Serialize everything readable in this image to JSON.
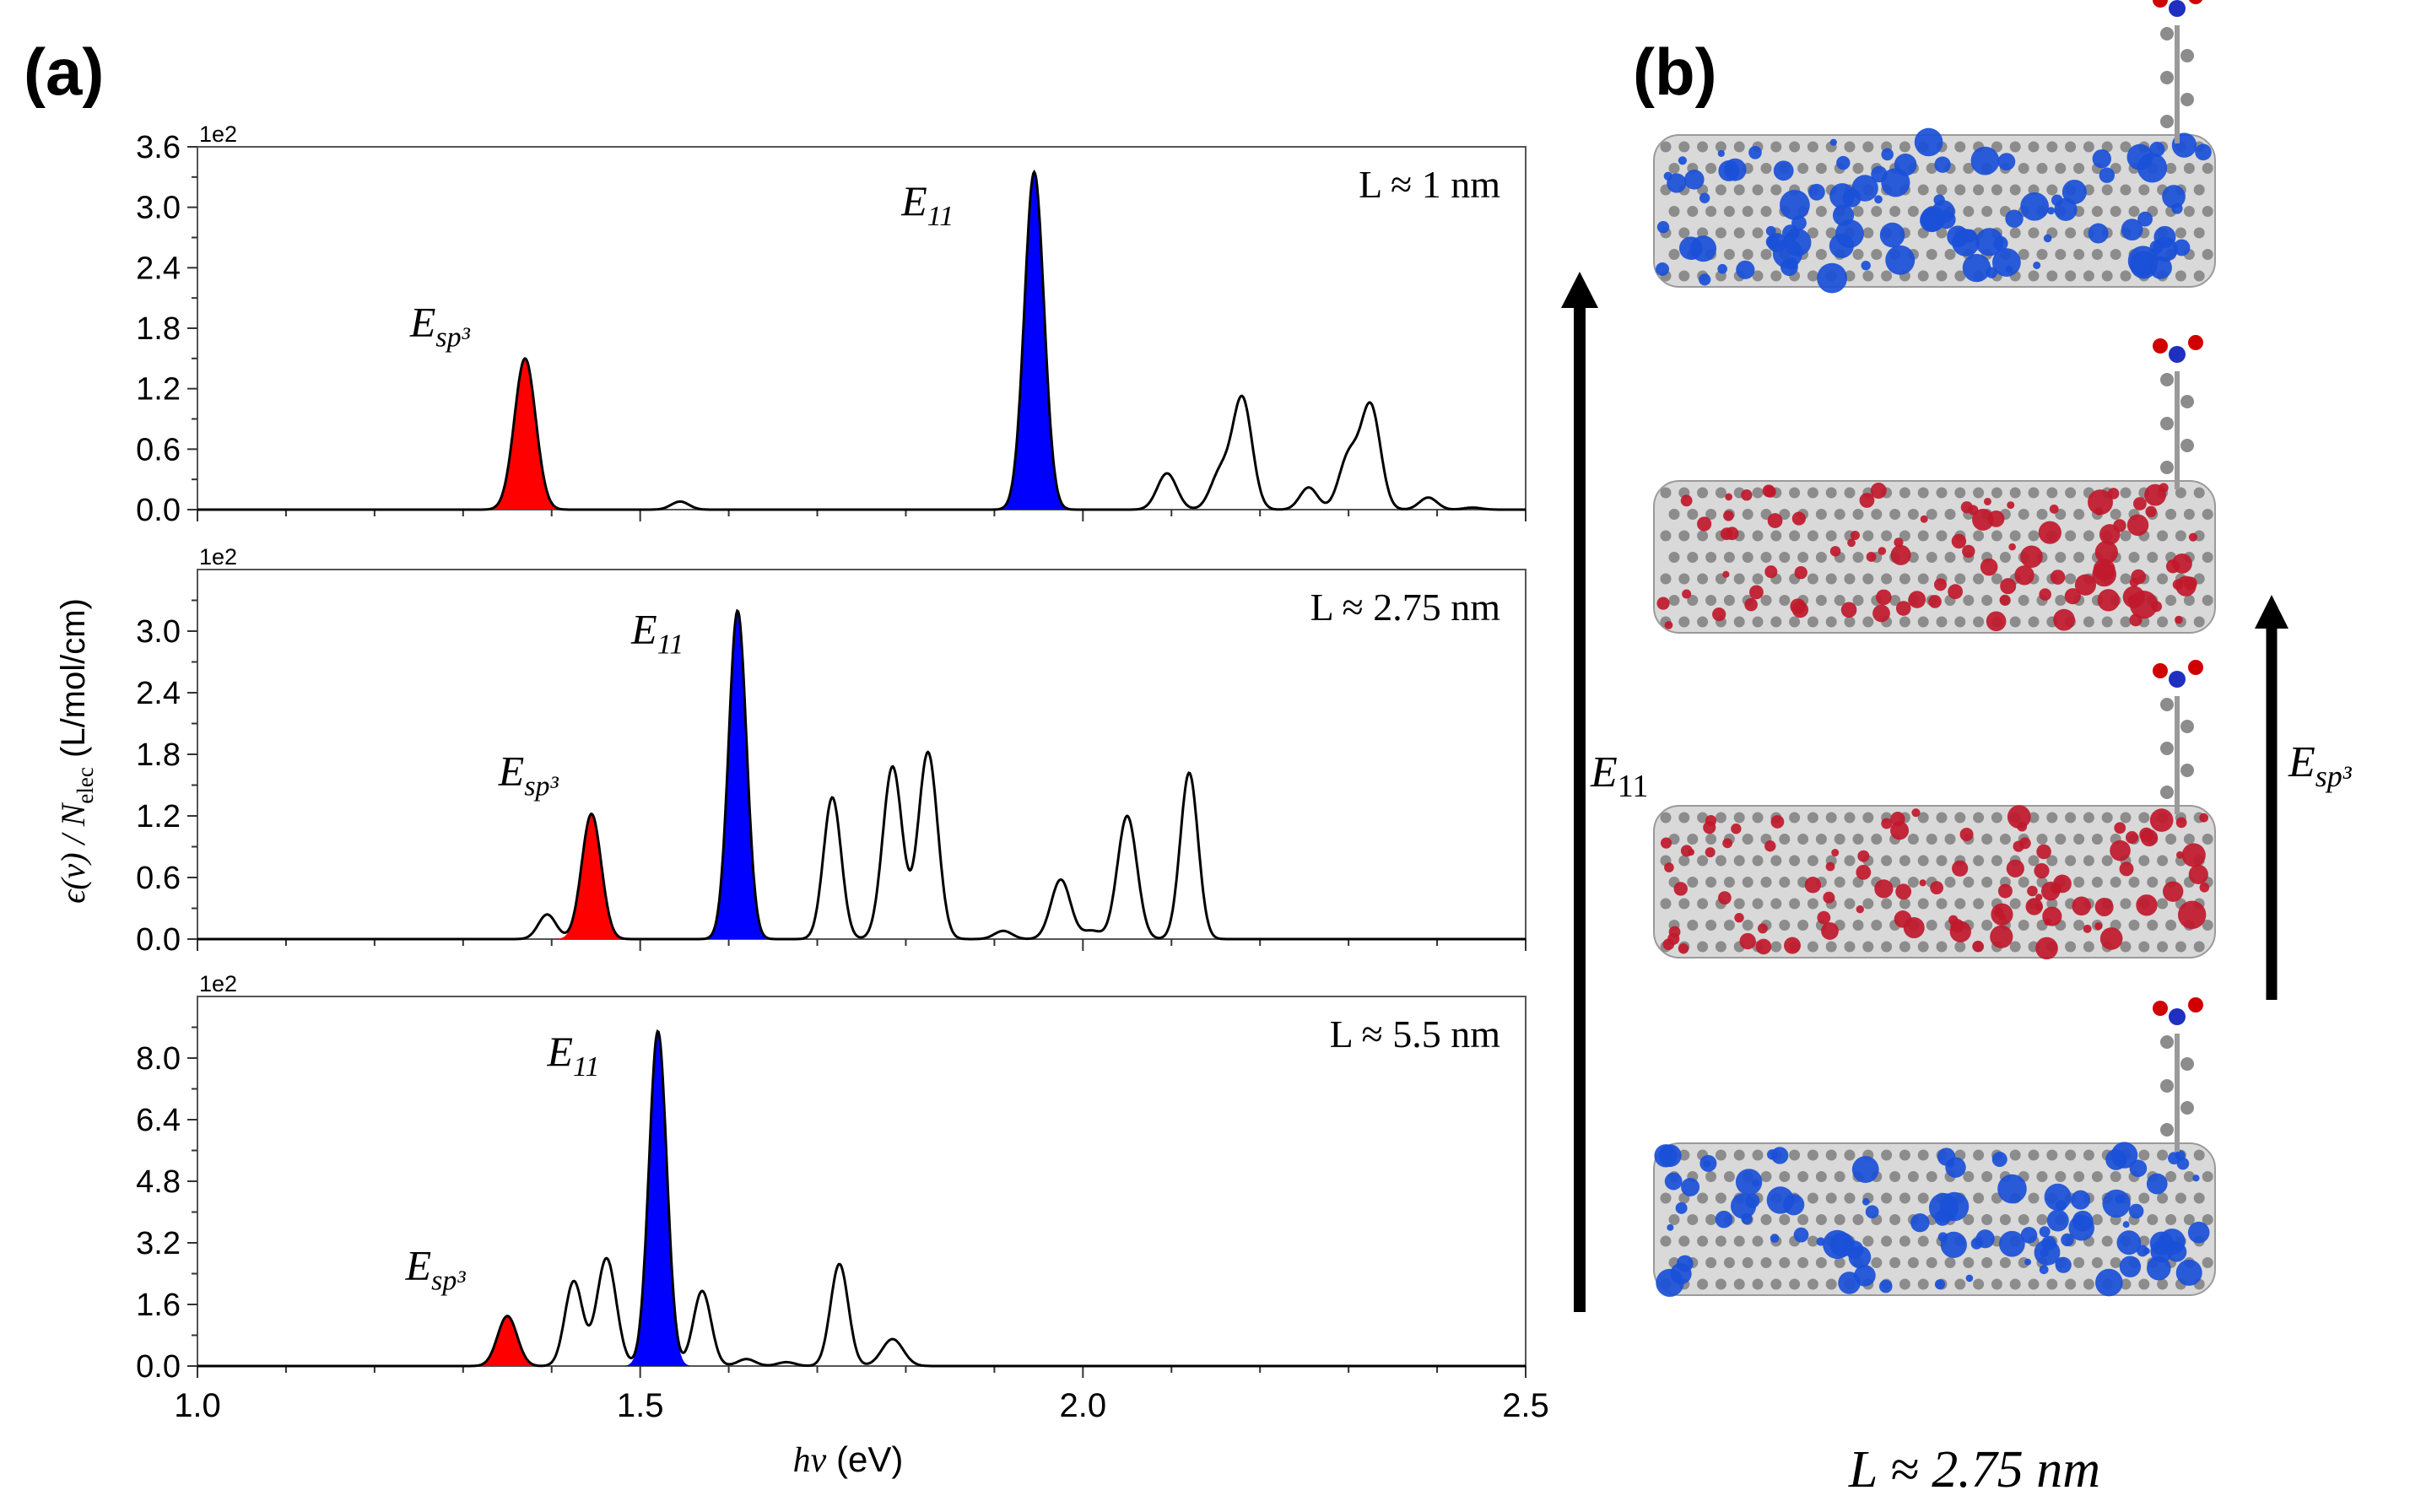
{
  "panel_a_label": "(a)",
  "panel_b_label": "(b)",
  "ylabel": {
    "eps": "ϵ(ν) / N",
    "sub": "elec",
    "unit": " (L/mol/cm)"
  },
  "xlabel": {
    "main": "hν",
    "unit": " (eV)"
  },
  "colors": {
    "esp3": "#ff0000",
    "e11": "#0000ff",
    "line": "#000000",
    "frame": "#555555"
  },
  "chart_data": [
    {
      "type": "line",
      "title": "L ≈ 1 nm",
      "exponent_label": "1e2",
      "xlim": [
        1.0,
        2.5
      ],
      "ylim": [
        0,
        3.6
      ],
      "yticks": [
        0.0,
        0.6,
        1.2,
        1.8,
        2.4,
        3.0,
        3.6
      ],
      "ytick_labels": [
        "0.0",
        "0.6",
        "1.2",
        "1.8",
        "2.4",
        "3.0",
        "3.6"
      ],
      "xticks": [
        1.0,
        1.5,
        2.0,
        2.5
      ],
      "xtick_labels": [],
      "peaks": [
        {
          "center": 1.37,
          "height": 1.5,
          "width": 0.012,
          "fill": "esp3",
          "label": "E",
          "sub": "sp³"
        },
        {
          "center": 1.545,
          "height": 0.08,
          "width": 0.01
        },
        {
          "center": 1.945,
          "height": 3.35,
          "width": 0.011,
          "fill": "e11",
          "label": "E",
          "sub": "11"
        },
        {
          "center": 2.095,
          "height": 0.36,
          "width": 0.011
        },
        {
          "center": 2.155,
          "height": 0.36,
          "width": 0.011
        },
        {
          "center": 2.18,
          "height": 1.1,
          "width": 0.011
        },
        {
          "center": 2.255,
          "height": 0.22,
          "width": 0.01
        },
        {
          "center": 2.3,
          "height": 0.52,
          "width": 0.011
        },
        {
          "center": 2.325,
          "height": 1.02,
          "width": 0.011
        },
        {
          "center": 2.39,
          "height": 0.12,
          "width": 0.01
        },
        {
          "center": 2.44,
          "height": 0.02,
          "width": 0.01
        }
      ],
      "peak_labels": [
        {
          "text": "E",
          "sub": "sp³",
          "x": 1.24,
          "y": 1.72
        },
        {
          "text": "E",
          "sub": "11",
          "x": 1.795,
          "y": 2.92
        }
      ]
    },
    {
      "type": "line",
      "title": "L ≈ 2.75 nm",
      "exponent_label": "1e2",
      "xlim": [
        1.0,
        2.5
      ],
      "ylim": [
        0,
        3.6
      ],
      "yticks": [
        0.0,
        0.6,
        1.2,
        1.8,
        2.4,
        3.0
      ],
      "ytick_labels": [
        "0.0",
        "0.6",
        "1.2",
        "1.8",
        "2.4",
        "3.0"
      ],
      "xticks": [
        1.0,
        1.5,
        2.0,
        2.5
      ],
      "xtick_labels": [],
      "peaks": [
        {
          "center": 1.395,
          "height": 0.24,
          "width": 0.01
        },
        {
          "center": 1.445,
          "height": 1.22,
          "width": 0.011,
          "fill": "esp3"
        },
        {
          "center": 1.61,
          "height": 3.2,
          "width": 0.01,
          "fill": "e11"
        },
        {
          "center": 1.717,
          "height": 1.38,
          "width": 0.01
        },
        {
          "center": 1.785,
          "height": 1.68,
          "width": 0.011
        },
        {
          "center": 1.825,
          "height": 1.82,
          "width": 0.011
        },
        {
          "center": 1.91,
          "height": 0.08,
          "width": 0.01
        },
        {
          "center": 1.975,
          "height": 0.58,
          "width": 0.011
        },
        {
          "center": 2.01,
          "height": 0.08,
          "width": 0.01
        },
        {
          "center": 2.05,
          "height": 1.2,
          "width": 0.011
        },
        {
          "center": 2.12,
          "height": 1.62,
          "width": 0.01
        }
      ],
      "peak_labels": [
        {
          "text": "E",
          "sub": "sp³",
          "x": 1.34,
          "y": 1.5
        },
        {
          "text": "E",
          "sub": "11",
          "x": 1.49,
          "y": 2.88
        }
      ]
    },
    {
      "type": "line",
      "title": "L ≈ 5.5 nm",
      "exponent_label": "1e2",
      "xlim": [
        1.0,
        2.5
      ],
      "ylim": [
        0,
        9.6
      ],
      "yticks": [
        0.0,
        1.6,
        3.2,
        4.8,
        6.4,
        8.0
      ],
      "ytick_labels": [
        "0.0",
        "1.6",
        "3.2",
        "4.8",
        "6.4",
        "8.0"
      ],
      "xticks": [
        1.0,
        1.5,
        2.0,
        2.5
      ],
      "xtick_labels": [
        "1.0",
        "1.5",
        "2.0",
        "2.5"
      ],
      "peaks": [
        {
          "center": 1.35,
          "height": 1.3,
          "width": 0.011,
          "fill": "esp3"
        },
        {
          "center": 1.425,
          "height": 2.2,
          "width": 0.01
        },
        {
          "center": 1.462,
          "height": 2.8,
          "width": 0.011
        },
        {
          "center": 1.52,
          "height": 8.7,
          "width": 0.01,
          "fill": "e11"
        },
        {
          "center": 1.57,
          "height": 1.95,
          "width": 0.01
        },
        {
          "center": 1.62,
          "height": 0.18,
          "width": 0.01
        },
        {
          "center": 1.665,
          "height": 0.1,
          "width": 0.01
        },
        {
          "center": 1.725,
          "height": 2.65,
          "width": 0.01
        },
        {
          "center": 1.785,
          "height": 0.7,
          "width": 0.012
        }
      ],
      "peak_labels": [
        {
          "text": "E",
          "sub": "sp³",
          "x": 1.235,
          "y": 2.25
        },
        {
          "text": "E",
          "sub": "11",
          "x": 1.395,
          "y": 7.8
        }
      ]
    }
  ],
  "panel_b": {
    "e11_arrow_label": {
      "text": "E",
      "sub": "11"
    },
    "esp3_arrow_label": {
      "text": "E",
      "sub": "sp³"
    },
    "bottom_caption": "L ≈ 2.75 nm",
    "orbitals": [
      {
        "name": "orbital-1",
        "color": "#1a4fd8"
      },
      {
        "name": "orbital-2",
        "color": "#c0192b"
      },
      {
        "name": "orbital-3",
        "color": "#c0192b"
      },
      {
        "name": "orbital-4",
        "color": "#1a4fd8"
      }
    ]
  }
}
